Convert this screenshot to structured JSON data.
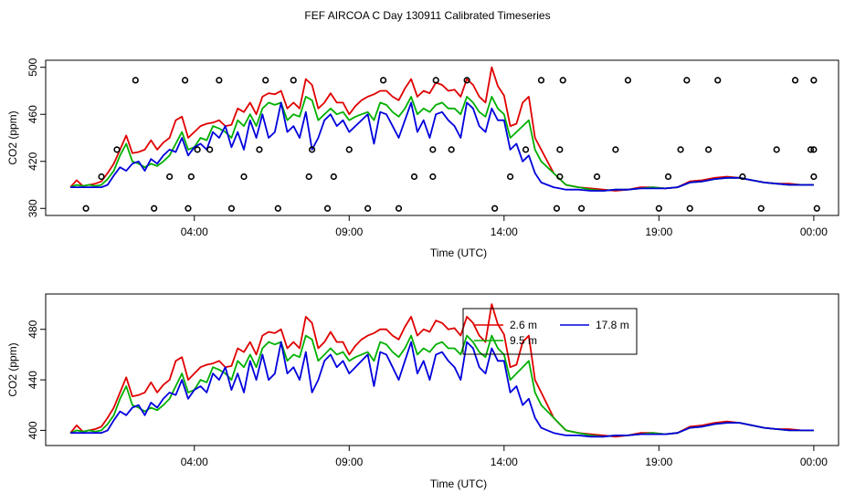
{
  "title": "FEF AIRCOA C  Day 130911  Calibrated Timeseries",
  "colors": {
    "series_2_6": "#e00000",
    "series_9_5": "#00b000",
    "series_17_8": "#0000dd",
    "markers": "#000000"
  },
  "chart_data": [
    {
      "type": "line+scatter",
      "xlabel": "Time (UTC)",
      "ylabel": "CO2 (ppm)",
      "xlim": [
        -0.8,
        24.8
      ],
      "ylim": [
        374,
        506
      ],
      "xticks": [
        {
          "v": 4,
          "label": "04:00"
        },
        {
          "v": 9,
          "label": "09:00"
        },
        {
          "v": 14,
          "label": "14:00"
        },
        {
          "v": 19,
          "label": "19:00"
        },
        {
          "v": 24,
          "label": "00:00"
        }
      ],
      "yticks": [
        {
          "v": 380,
          "label": "380"
        },
        {
          "v": 420,
          "label": "420"
        },
        {
          "v": 460,
          "label": "460"
        },
        {
          "v": 500,
          "label": "500"
        }
      ],
      "show_series": true,
      "series_note": "same three lines as panel 2",
      "markers": {
        "name": "calibration points",
        "x": [
          0.5,
          1.0,
          1.5,
          2.1,
          2.7,
          3.2,
          3.7,
          3.8,
          3.9,
          4.1,
          4.5,
          4.8,
          5.2,
          5.6,
          6.1,
          6.3,
          6.7,
          7.2,
          7.7,
          7.8,
          8.3,
          8.5,
          9.0,
          9.6,
          10.1,
          10.6,
          11.1,
          11.7,
          11.7,
          11.8,
          12.3,
          12.8,
          13.7,
          14.2,
          14.7,
          15.2,
          15.7,
          15.8,
          15.8,
          15.9,
          16.5,
          17.0,
          17.6,
          18.0,
          19.0,
          19.3,
          19.7,
          19.9,
          20.0,
          20.6,
          20.9,
          21.7,
          22.3,
          22.8,
          23.4,
          23.9,
          24.0,
          24.0,
          24.1,
          24.0
        ],
        "y": [
          380,
          407,
          430,
          489,
          380,
          407,
          489,
          380,
          407,
          430,
          430,
          489,
          380,
          407,
          430,
          489,
          380,
          489,
          407,
          430,
          380,
          407,
          430,
          380,
          489,
          380,
          407,
          430,
          407,
          489,
          430,
          489,
          380,
          407,
          430,
          489,
          380,
          407,
          430,
          489,
          380,
          407,
          430,
          489,
          380,
          407,
          430,
          489,
          380,
          430,
          489,
          407,
          380,
          430,
          489,
          430,
          407,
          489,
          380,
          430
        ]
      }
    },
    {
      "type": "line",
      "xlabel": "Time (UTC)",
      "ylabel": "CO2 (ppm)",
      "xlim": [
        -0.8,
        24.8
      ],
      "ylim": [
        388,
        508
      ],
      "xticks": [
        {
          "v": 4,
          "label": "04:00"
        },
        {
          "v": 9,
          "label": "09:00"
        },
        {
          "v": 14,
          "label": "14:00"
        },
        {
          "v": 19,
          "label": "19:00"
        },
        {
          "v": 24,
          "label": "00:00"
        }
      ],
      "yticks": [
        {
          "v": 400,
          "label": "400"
        },
        {
          "v": 440,
          "label": "440"
        },
        {
          "v": 480,
          "label": "480"
        }
      ],
      "legend": {
        "placement": "top-center",
        "entries": [
          {
            "key": "s1",
            "label": "2.6 m"
          },
          {
            "key": "s3",
            "label": "17.8 m"
          },
          {
            "key": "s2",
            "label": "9.5 m"
          }
        ]
      },
      "series": [
        {
          "name": "2.6 m",
          "color": "#e00000",
          "x": [
            0.0,
            0.2,
            0.4,
            0.6,
            0.8,
            1.0,
            1.2,
            1.4,
            1.6,
            1.8,
            2.0,
            2.2,
            2.4,
            2.6,
            2.8,
            3.0,
            3.2,
            3.4,
            3.6,
            3.8,
            4.0,
            4.2,
            4.4,
            4.6,
            4.8,
            5.0,
            5.2,
            5.4,
            5.6,
            5.8,
            6.0,
            6.2,
            6.4,
            6.6,
            6.8,
            7.0,
            7.2,
            7.4,
            7.6,
            7.8,
            8.0,
            8.2,
            8.4,
            8.6,
            8.8,
            9.0,
            9.2,
            9.4,
            9.6,
            9.8,
            10.0,
            10.2,
            10.4,
            10.6,
            10.8,
            11.0,
            11.2,
            11.4,
            11.6,
            11.8,
            12.0,
            12.2,
            12.4,
            12.6,
            12.8,
            13.0,
            13.2,
            13.4,
            13.6,
            13.8,
            14.0,
            14.2,
            14.4,
            14.6,
            14.8,
            15.0,
            15.2,
            15.4,
            15.6,
            15.8,
            16.0,
            16.4,
            16.8,
            17.2,
            17.6,
            18.0,
            18.4,
            18.8,
            19.2,
            19.6,
            20.0,
            20.4,
            20.8,
            21.2,
            21.6,
            22.0,
            22.4,
            22.8,
            23.2,
            23.6,
            24.0
          ],
          "y": [
            398,
            404,
            399,
            400,
            401,
            403,
            410,
            418,
            430,
            442,
            427,
            428,
            430,
            438,
            430,
            436,
            440,
            455,
            458,
            440,
            445,
            450,
            452,
            453,
            455,
            450,
            451,
            465,
            462,
            470,
            460,
            475,
            478,
            477,
            480,
            465,
            470,
            465,
            490,
            485,
            465,
            470,
            478,
            470,
            470,
            460,
            467,
            472,
            475,
            477,
            480,
            480,
            475,
            472,
            482,
            490,
            475,
            480,
            478,
            487,
            485,
            480,
            481,
            475,
            490,
            485,
            475,
            470,
            500,
            484,
            476,
            450,
            452,
            470,
            475,
            440,
            430,
            420,
            410,
            405,
            400,
            398,
            397,
            396,
            395,
            396,
            398,
            398,
            397,
            398,
            403,
            404,
            406,
            407,
            406,
            404,
            402,
            401,
            401,
            400,
            400
          ]
        },
        {
          "name": "9.5 m",
          "color": "#00b000",
          "x": [
            0.0,
            0.2,
            0.4,
            0.6,
            0.8,
            1.0,
            1.2,
            1.4,
            1.6,
            1.8,
            2.0,
            2.2,
            2.4,
            2.6,
            2.8,
            3.0,
            3.2,
            3.4,
            3.6,
            3.8,
            4.0,
            4.2,
            4.4,
            4.6,
            4.8,
            5.0,
            5.2,
            5.4,
            5.6,
            5.8,
            6.0,
            6.2,
            6.4,
            6.6,
            6.8,
            7.0,
            7.2,
            7.4,
            7.6,
            7.8,
            8.0,
            8.2,
            8.4,
            8.6,
            8.8,
            9.0,
            9.2,
            9.4,
            9.6,
            9.8,
            10.0,
            10.2,
            10.4,
            10.6,
            10.8,
            11.0,
            11.2,
            11.4,
            11.6,
            11.8,
            12.0,
            12.2,
            12.4,
            12.6,
            12.8,
            13.0,
            13.2,
            13.4,
            13.6,
            13.8,
            14.0,
            14.2,
            14.4,
            14.6,
            14.8,
            15.0,
            15.2,
            15.4,
            15.6,
            15.8,
            16.0,
            16.4,
            16.8,
            17.2,
            17.6,
            18.0,
            18.4,
            18.8,
            19.2,
            19.6,
            20.0,
            20.4,
            20.8,
            21.2,
            21.6,
            22.0,
            22.4,
            22.8,
            23.2,
            23.6,
            24.0
          ],
          "y": [
            398,
            400,
            399,
            400,
            399,
            400,
            405,
            412,
            425,
            435,
            420,
            418,
            415,
            418,
            416,
            420,
            425,
            435,
            445,
            430,
            432,
            440,
            438,
            450,
            448,
            445,
            440,
            455,
            450,
            460,
            450,
            465,
            470,
            468,
            470,
            455,
            460,
            458,
            475,
            472,
            455,
            460,
            465,
            460,
            462,
            455,
            458,
            460,
            462,
            455,
            470,
            468,
            462,
            458,
            465,
            475,
            460,
            465,
            462,
            468,
            470,
            465,
            465,
            460,
            475,
            470,
            462,
            458,
            475,
            465,
            460,
            440,
            445,
            450,
            455,
            430,
            420,
            415,
            410,
            405,
            400,
            398,
            396,
            395,
            396,
            396,
            397,
            398,
            397,
            398,
            402,
            403,
            405,
            406,
            406,
            404,
            402,
            401,
            400,
            400,
            400
          ]
        },
        {
          "name": "17.8 m",
          "color": "#0000dd",
          "x": [
            0.0,
            0.2,
            0.4,
            0.6,
            0.8,
            1.0,
            1.2,
            1.4,
            1.6,
            1.8,
            2.0,
            2.2,
            2.4,
            2.6,
            2.8,
            3.0,
            3.2,
            3.4,
            3.6,
            3.8,
            4.0,
            4.2,
            4.4,
            4.6,
            4.8,
            5.0,
            5.2,
            5.4,
            5.6,
            5.8,
            6.0,
            6.2,
            6.4,
            6.6,
            6.8,
            7.0,
            7.2,
            7.4,
            7.6,
            7.8,
            8.0,
            8.2,
            8.4,
            8.6,
            8.8,
            9.0,
            9.2,
            9.4,
            9.6,
            9.8,
            10.0,
            10.2,
            10.4,
            10.6,
            10.8,
            11.0,
            11.2,
            11.4,
            11.6,
            11.8,
            12.0,
            12.2,
            12.4,
            12.6,
            12.8,
            13.0,
            13.2,
            13.4,
            13.6,
            13.8,
            14.0,
            14.2,
            14.4,
            14.6,
            14.8,
            15.0,
            15.2,
            15.4,
            15.6,
            15.8,
            16.0,
            16.4,
            16.8,
            17.2,
            17.6,
            18.0,
            18.4,
            18.8,
            19.2,
            19.6,
            20.0,
            20.4,
            20.8,
            21.2,
            21.6,
            22.0,
            22.4,
            22.8,
            23.2,
            23.6,
            24.0
          ],
          "y": [
            398,
            398,
            398,
            398,
            398,
            398,
            400,
            408,
            415,
            412,
            418,
            420,
            412,
            422,
            418,
            425,
            430,
            428,
            440,
            425,
            432,
            435,
            430,
            445,
            440,
            450,
            432,
            445,
            430,
            455,
            440,
            460,
            440,
            445,
            470,
            445,
            450,
            440,
            462,
            430,
            440,
            455,
            460,
            450,
            455,
            445,
            450,
            455,
            460,
            435,
            462,
            460,
            450,
            440,
            455,
            470,
            445,
            455,
            440,
            460,
            462,
            455,
            450,
            440,
            470,
            465,
            450,
            445,
            465,
            455,
            455,
            430,
            435,
            420,
            425,
            410,
            402,
            400,
            398,
            397,
            396,
            396,
            395,
            395,
            396,
            396,
            397,
            397,
            397,
            398,
            402,
            403,
            405,
            406,
            406,
            404,
            402,
            401,
            400,
            400,
            400
          ]
        }
      ]
    }
  ]
}
